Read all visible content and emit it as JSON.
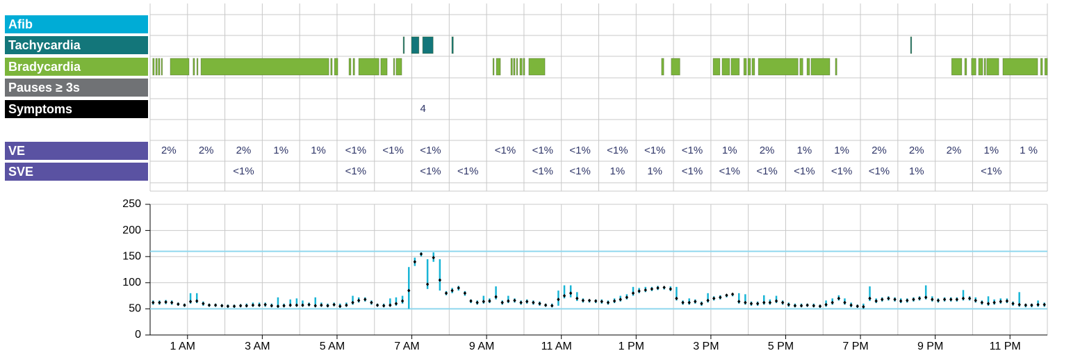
{
  "event_rows": [
    {
      "label": "Afib",
      "color": "#00acd6",
      "bar_color": "#00acd6",
      "intervals": []
    },
    {
      "label": "Tachycardia",
      "color": "#13767a",
      "bar_color": "#13767a",
      "intervals": [
        [
          6.77,
          6.8
        ],
        [
          6.99,
          7.19
        ],
        [
          7.29,
          7.57
        ],
        [
          8.07,
          8.11
        ],
        [
          20.34,
          20.37
        ]
      ]
    },
    {
      "label": "Bradycardia",
      "color": "#7cb53b",
      "bar_color": "#7cb53b",
      "intervals": [
        [
          0.07,
          0.11
        ],
        [
          0.15,
          0.19
        ],
        [
          0.22,
          0.26
        ],
        [
          0.3,
          0.32
        ],
        [
          0.54,
          1.04
        ],
        [
          1.15,
          1.19
        ],
        [
          1.25,
          1.28
        ],
        [
          1.36,
          4.78
        ],
        [
          4.83,
          4.87
        ],
        [
          4.93,
          5.02
        ],
        [
          5.32,
          5.37
        ],
        [
          5.43,
          5.47
        ],
        [
          5.58,
          6.12
        ],
        [
          6.17,
          6.34
        ],
        [
          6.51,
          6.54
        ],
        [
          6.58,
          6.73
        ],
        [
          9.17,
          9.2
        ],
        [
          9.26,
          9.37
        ],
        [
          9.65,
          9.69
        ],
        [
          9.72,
          9.76
        ],
        [
          9.8,
          9.83
        ],
        [
          9.89,
          9.95
        ],
        [
          9.98,
          10.02
        ],
        [
          10.13,
          10.56
        ],
        [
          13.68,
          13.74
        ],
        [
          13.94,
          14.17
        ],
        [
          15.06,
          15.24
        ],
        [
          15.3,
          15.5
        ],
        [
          15.54,
          15.76
        ],
        [
          15.88,
          15.95
        ],
        [
          15.99,
          16.06
        ],
        [
          16.1,
          16.17
        ],
        [
          16.27,
          17.33
        ],
        [
          17.38,
          17.46
        ],
        [
          17.57,
          17.64
        ],
        [
          17.68,
          18.18
        ],
        [
          18.33,
          18.37
        ],
        [
          21.44,
          21.71
        ],
        [
          21.79,
          21.84
        ],
        [
          21.97,
          22.09
        ],
        [
          22.16,
          22.27
        ],
        [
          22.31,
          22.35
        ],
        [
          22.38,
          22.7
        ],
        [
          22.81,
          23.74
        ],
        [
          23.82,
          23.87
        ],
        [
          23.93,
          24
        ]
      ]
    },
    {
      "label": "Pauses ≥ 3s",
      "color": "#707275",
      "bar_color": "#707275",
      "intervals": []
    },
    {
      "label": "Symptoms",
      "color": "#000000",
      "markers": [
        {
          "x": 7.3,
          "count": 4
        }
      ]
    }
  ],
  "percent_rows": [
    {
      "label": "VE",
      "color": "#5a52a2",
      "values": [
        "2%",
        "2%",
        "2%",
        "1%",
        "1%",
        "<1%",
        "<1%",
        "<1%",
        null,
        "<1%",
        "<1%",
        "<1%",
        "<1%",
        "<1%",
        "<1%",
        "1%",
        "2%",
        "1%",
        "1%",
        "2%",
        "2%",
        "2%",
        "1%",
        "1 %"
      ]
    },
    {
      "label": "SVE",
      "color": "#5a52a2",
      "values": [
        null,
        null,
        "<1%",
        null,
        null,
        "<1%",
        null,
        "<1%",
        "<1%",
        null,
        "<1%",
        "<1%",
        "1%",
        "1%",
        "<1%",
        "<1%",
        "<1%",
        "<1%",
        "<1%",
        "<1%",
        "1%",
        null,
        "<1%",
        null
      ]
    }
  ],
  "chart_data": {
    "type": "range",
    "x": [
      0.08,
      0.25,
      0.42,
      0.58,
      0.75,
      0.92,
      1.08,
      1.25,
      1.42,
      1.58,
      1.75,
      1.92,
      2.08,
      2.25,
      2.42,
      2.58,
      2.75,
      2.92,
      3.08,
      3.25,
      3.42,
      3.58,
      3.75,
      3.92,
      4.08,
      4.25,
      4.42,
      4.58,
      4.75,
      4.92,
      5.08,
      5.25,
      5.42,
      5.58,
      5.75,
      5.92,
      6.08,
      6.25,
      6.42,
      6.58,
      6.75,
      6.92,
      7.08,
      7.25,
      7.42,
      7.58,
      7.75,
      7.92,
      8.08,
      8.25,
      8.42,
      8.58,
      8.75,
      8.92,
      9.08,
      9.25,
      9.42,
      9.58,
      9.75,
      9.92,
      10.08,
      10.25,
      10.42,
      10.58,
      10.75,
      10.92,
      11.08,
      11.25,
      11.42,
      11.58,
      11.75,
      11.92,
      12.08,
      12.25,
      12.42,
      12.58,
      12.75,
      12.92,
      13.08,
      13.25,
      13.42,
      13.58,
      13.75,
      13.92,
      14.08,
      14.25,
      14.42,
      14.58,
      14.75,
      14.92,
      15.08,
      15.25,
      15.42,
      15.58,
      15.75,
      15.92,
      16.08,
      16.25,
      16.42,
      16.58,
      16.75,
      16.92,
      17.08,
      17.25,
      17.42,
      17.58,
      17.75,
      17.92,
      18.08,
      18.25,
      18.42,
      18.58,
      18.75,
      18.92,
      19.08,
      19.25,
      19.42,
      19.58,
      19.75,
      19.92,
      20.08,
      20.25,
      20.42,
      20.58,
      20.75,
      20.92,
      21.08,
      21.25,
      21.42,
      21.58,
      21.75,
      21.92,
      22.08,
      22.25,
      22.42,
      22.58,
      22.75,
      22.92,
      23.08,
      23.25,
      23.42,
      23.58,
      23.75,
      23.92
    ],
    "series": [
      {
        "name": "avg",
        "color": "#000000",
        "values": [
          62,
          62,
          63,
          62,
          59,
          57,
          64,
          65,
          60,
          57,
          57,
          56,
          55,
          55,
          56,
          56,
          57,
          57,
          58,
          56,
          55,
          56,
          57,
          57,
          57,
          58,
          56,
          57,
          56,
          58,
          55,
          57,
          62,
          66,
          68,
          62,
          57,
          56,
          57,
          60,
          65,
          85,
          140,
          155,
          97,
          148,
          105,
          80,
          85,
          90,
          80,
          65,
          62,
          64,
          65,
          73,
          62,
          65,
          66,
          62,
          64,
          62,
          60,
          57,
          56,
          68,
          75,
          80,
          70,
          66,
          66,
          65,
          64,
          62,
          65,
          68,
          72,
          80,
          84,
          86,
          88,
          90,
          91,
          88,
          70,
          62,
          62,
          64,
          60,
          66,
          70,
          72,
          76,
          78,
          64,
          62,
          60,
          60,
          62,
          62,
          65,
          62,
          58,
          56,
          56,
          57,
          56,
          55,
          58,
          62,
          70,
          62,
          57,
          55,
          54,
          70,
          65,
          68,
          70,
          68,
          65,
          66,
          68,
          70,
          72,
          68,
          66,
          68,
          68,
          68,
          70,
          70,
          66,
          62,
          60,
          62,
          64,
          65,
          60,
          58,
          57,
          57,
          58,
          58
        ]
      },
      {
        "name": "min",
        "color": "#19b5d6",
        "values": [
          58,
          58,
          59,
          58,
          56,
          54,
          60,
          61,
          56,
          54,
          54,
          53,
          52,
          52,
          53,
          53,
          54,
          54,
          54,
          53,
          52,
          53,
          54,
          54,
          54,
          55,
          53,
          54,
          53,
          55,
          52,
          54,
          58,
          62,
          64,
          58,
          54,
          53,
          54,
          56,
          60,
          50,
          132,
          150,
          88,
          140,
          85,
          76,
          80,
          85,
          75,
          61,
          58,
          60,
          61,
          68,
          58,
          61,
          62,
          58,
          60,
          58,
          56,
          54,
          53,
          56,
          70,
          72,
          65,
          62,
          62,
          61,
          60,
          58,
          61,
          64,
          68,
          75,
          80,
          82,
          84,
          86,
          87,
          84,
          66,
          58,
          58,
          60,
          56,
          62,
          66,
          68,
          72,
          74,
          60,
          58,
          56,
          56,
          58,
          58,
          61,
          58,
          54,
          53,
          53,
          54,
          53,
          52,
          54,
          58,
          66,
          58,
          53,
          52,
          50,
          65,
          61,
          64,
          66,
          64,
          61,
          62,
          64,
          66,
          68,
          64,
          62,
          64,
          64,
          64,
          66,
          66,
          62,
          58,
          56,
          58,
          60,
          61,
          56,
          54,
          53,
          53,
          54,
          54
        ]
      },
      {
        "name": "max",
        "color": "#19b5d6",
        "values": [
          66,
          66,
          67,
          66,
          62,
          60,
          80,
          80,
          64,
          60,
          60,
          59,
          58,
          58,
          59,
          60,
          62,
          62,
          62,
          60,
          72,
          60,
          68,
          70,
          66,
          62,
          72,
          62,
          60,
          62,
          60,
          62,
          75,
          72,
          72,
          66,
          60,
          60,
          70,
          72,
          75,
          130,
          148,
          158,
          145,
          158,
          145,
          84,
          90,
          94,
          84,
          68,
          66,
          75,
          70,
          93,
          66,
          75,
          70,
          66,
          68,
          66,
          64,
          60,
          60,
          85,
          95,
          95,
          82,
          70,
          68,
          68,
          68,
          66,
          70,
          75,
          78,
          92,
          90,
          92,
          92,
          94,
          93,
          93,
          92,
          66,
          70,
          68,
          64,
          80,
          74,
          76,
          78,
          80,
          80,
          78,
          64,
          64,
          76,
          68,
          75,
          66,
          62,
          60,
          60,
          60,
          60,
          58,
          66,
          70,
          76,
          70,
          62,
          58,
          60,
          93,
          70,
          72,
          74,
          72,
          70,
          70,
          72,
          74,
          95,
          74,
          70,
          72,
          72,
          72,
          86,
          74,
          72,
          66,
          74,
          68,
          70,
          70,
          64,
          82,
          60,
          60,
          66,
          62
        ]
      }
    ],
    "xlim": [
      0,
      24
    ],
    "xticks": [
      {
        "value": 1,
        "label": "1 AM"
      },
      {
        "value": 3,
        "label": "3 AM"
      },
      {
        "value": 5,
        "label": "5 AM"
      },
      {
        "value": 7,
        "label": "7 AM"
      },
      {
        "value": 9,
        "label": "9 AM"
      },
      {
        "value": 11,
        "label": "11 AM"
      },
      {
        "value": 13,
        "label": "1 PM"
      },
      {
        "value": 15,
        "label": "3 PM"
      },
      {
        "value": 17,
        "label": "5 PM"
      },
      {
        "value": 19,
        "label": "7 PM"
      },
      {
        "value": 21,
        "label": "9 PM"
      },
      {
        "value": 23,
        "label": "11 PM"
      }
    ],
    "xgrid": [
      0,
      1,
      2,
      3,
      4,
      5,
      6,
      7,
      8,
      9,
      10,
      11,
      12,
      13,
      14,
      15,
      16,
      17,
      18,
      19,
      20,
      21,
      22,
      23,
      24
    ],
    "ylim": [
      0,
      250
    ],
    "yticks": [
      0,
      50,
      100,
      150,
      200,
      250
    ],
    "thresholds": [
      160,
      50
    ],
    "threshold_color": "#8fd8ee",
    "grid": true
  }
}
